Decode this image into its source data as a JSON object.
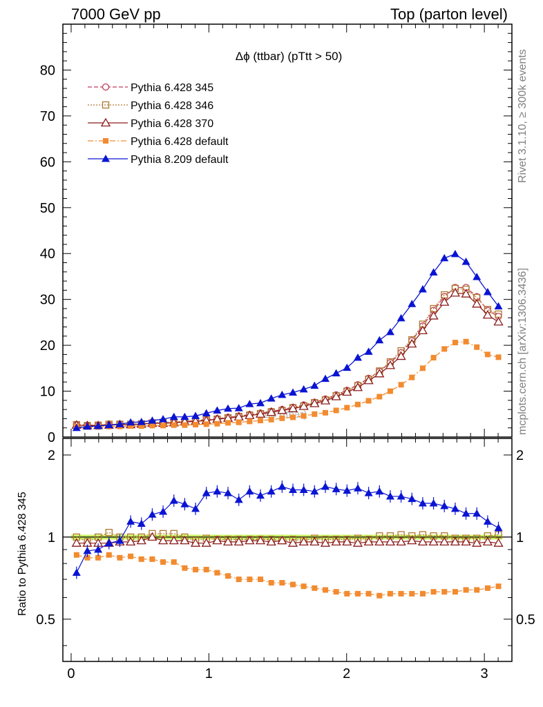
{
  "header": {
    "left": "7000 GeV pp",
    "right": "Top (parton level)"
  },
  "side_text": {
    "top": "Rivet 3.1.10, ≥ 300k events",
    "bottom": "mcplots.cern.ch [arXiv:1306.3436]"
  },
  "chart_data": [
    {
      "type": "line",
      "title": "Δϕ (ttbar) (pTtt > 50)",
      "watermark": "Δϕ (ttbar)",
      "xlim": [
        -0.06,
        3.2
      ],
      "ylim": [
        0,
        90
      ],
      "y_ticks": [
        0,
        10,
        20,
        30,
        40,
        50,
        60,
        70,
        80
      ],
      "x": [
        0.0393,
        0.1178,
        0.1963,
        0.2749,
        0.3534,
        0.432,
        0.5105,
        0.589,
        0.6676,
        0.7461,
        0.8247,
        0.9032,
        0.9817,
        1.0603,
        1.1388,
        1.2174,
        1.2959,
        1.3744,
        1.453,
        1.5315,
        1.6101,
        1.6886,
        1.7671,
        1.8457,
        1.9242,
        2.0028,
        2.0813,
        2.1598,
        2.2384,
        2.3169,
        2.3955,
        2.474,
        2.5525,
        2.6311,
        2.7096,
        2.7882,
        2.8667,
        2.9452,
        3.0238,
        3.1023
      ],
      "series": [
        {
          "name": "Pythia 6.428 345",
          "color": "#c0395a",
          "marker": "open-circle",
          "line": "dashed",
          "values": [
            2.7,
            2.6,
            2.6,
            2.7,
            2.8,
            2.8,
            2.9,
            3.0,
            3.1,
            3.2,
            3.4,
            3.6,
            3.8,
            4.0,
            4.3,
            4.6,
            4.9,
            5.2,
            5.6,
            6.0,
            6.5,
            7.0,
            7.6,
            8.3,
            9.2,
            10.2,
            11.4,
            12.8,
            14.3,
            16.2,
            18.4,
            21.0,
            24.2,
            27.6,
            30.6,
            32.6,
            32.6,
            30.6,
            27.6,
            26.3
          ]
        },
        {
          "name": "Pythia 6.428 346",
          "color": "#b07830",
          "marker": "open-square",
          "line": "dotted",
          "values": [
            2.7,
            2.5,
            2.6,
            2.8,
            2.8,
            2.8,
            2.9,
            3.1,
            3.2,
            3.3,
            3.4,
            3.5,
            3.7,
            3.9,
            4.2,
            4.5,
            4.8,
            5.1,
            5.5,
            5.8,
            6.4,
            6.8,
            7.5,
            8.1,
            9.0,
            10.0,
            11.2,
            12.6,
            14.4,
            16.4,
            18.8,
            21.2,
            24.6,
            28.0,
            31.0,
            32.4,
            32.2,
            30.4,
            27.8,
            26.8
          ]
        },
        {
          "name": "Pythia 6.428 370",
          "color": "#8b1a1a",
          "marker": "open-triangle",
          "line": "solid",
          "values": [
            2.6,
            2.5,
            2.5,
            2.6,
            2.7,
            2.7,
            2.8,
            3.0,
            3.0,
            3.1,
            3.3,
            3.4,
            3.6,
            3.9,
            4.1,
            4.4,
            4.7,
            5.0,
            5.4,
            5.8,
            6.2,
            6.7,
            7.3,
            7.9,
            8.8,
            9.8,
            10.8,
            12.3,
            13.8,
            15.6,
            17.6,
            20.3,
            23.2,
            26.4,
            29.4,
            31.4,
            31.2,
            29.0,
            26.6,
            25.1
          ]
        },
        {
          "name": "Pythia 6.428 default",
          "color": "#f28b30",
          "marker": "filled-square",
          "line": "dashdot",
          "values": [
            2.3,
            2.2,
            2.2,
            2.3,
            2.3,
            2.4,
            2.4,
            2.5,
            2.5,
            2.6,
            2.6,
            2.7,
            2.8,
            2.9,
            3.1,
            3.2,
            3.4,
            3.6,
            3.8,
            4.1,
            4.3,
            4.6,
            5.0,
            5.3,
            5.8,
            6.4,
            7.1,
            7.9,
            8.8,
            10.0,
            11.4,
            13.0,
            15.0,
            17.3,
            19.2,
            20.6,
            20.8,
            19.6,
            18.0,
            17.4
          ]
        },
        {
          "name": "Pythia 8.209 default",
          "color": "#0a14d2",
          "marker": "filled-triangle",
          "line": "solid",
          "values": [
            2.0,
            2.3,
            2.4,
            2.6,
            2.8,
            3.2,
            3.3,
            3.6,
            3.9,
            4.4,
            4.4,
            4.6,
            5.2,
            5.8,
            6.2,
            6.3,
            7.2,
            7.4,
            8.4,
            9.2,
            9.7,
            10.4,
            11.2,
            12.7,
            13.9,
            15.1,
            17.3,
            18.6,
            21.1,
            22.9,
            25.9,
            29.0,
            32.2,
            35.9,
            39.0,
            39.9,
            38.2,
            34.9,
            31.6,
            28.5
          ]
        }
      ]
    },
    {
      "type": "line",
      "ylabel": "Ratio to Pythia 6.428 345",
      "xlim": [
        -0.06,
        3.2
      ],
      "ylim": [
        0.35,
        2.3
      ],
      "y_ticks": [
        0.5,
        1,
        2
      ],
      "x_ticks": [
        0,
        1,
        2,
        3
      ],
      "reference_band": {
        "value": 1.0,
        "low": 0.98,
        "high": 1.02,
        "color": "#c8f064"
      },
      "series": [
        {
          "name": "Pythia 6.428 346",
          "values": [
            1.0,
            0.96,
            1.0,
            1.04,
            1.0,
            1.0,
            1.0,
            1.03,
            1.03,
            1.03,
            1.0,
            0.97,
            0.99,
            0.98,
            0.98,
            0.98,
            0.98,
            0.98,
            0.98,
            0.97,
            0.98,
            0.97,
            0.99,
            0.98,
            0.98,
            0.98,
            0.99,
            0.98,
            1.01,
            1.01,
            1.02,
            1.01,
            1.02,
            1.01,
            1.01,
            0.99,
            0.99,
            0.99,
            1.01,
            1.02
          ]
        },
        {
          "name": "Pythia 6.428 370",
          "values": [
            0.95,
            0.95,
            0.95,
            0.95,
            0.96,
            0.96,
            0.97,
            1.0,
            0.97,
            0.97,
            0.97,
            0.95,
            0.95,
            0.97,
            0.96,
            0.96,
            0.97,
            0.97,
            0.96,
            0.97,
            0.95,
            0.96,
            0.96,
            0.95,
            0.96,
            0.96,
            0.95,
            0.96,
            0.96,
            0.96,
            0.96,
            0.97,
            0.96,
            0.96,
            0.96,
            0.96,
            0.96,
            0.95,
            0.96,
            0.95
          ]
        },
        {
          "name": "Pythia 6.428 default",
          "values": [
            0.86,
            0.84,
            0.84,
            0.86,
            0.84,
            0.85,
            0.83,
            0.83,
            0.81,
            0.81,
            0.77,
            0.76,
            0.76,
            0.74,
            0.72,
            0.7,
            0.7,
            0.7,
            0.68,
            0.68,
            0.67,
            0.66,
            0.65,
            0.64,
            0.63,
            0.62,
            0.62,
            0.62,
            0.61,
            0.62,
            0.62,
            0.62,
            0.62,
            0.63,
            0.63,
            0.63,
            0.64,
            0.64,
            0.65,
            0.66
          ]
        },
        {
          "name": "Pythia 8.209 default",
          "values": [
            0.74,
            0.89,
            0.9,
            0.95,
            0.97,
            1.14,
            1.12,
            1.21,
            1.24,
            1.36,
            1.32,
            1.27,
            1.45,
            1.47,
            1.45,
            1.37,
            1.47,
            1.42,
            1.47,
            1.53,
            1.49,
            1.49,
            1.47,
            1.53,
            1.5,
            1.48,
            1.51,
            1.45,
            1.47,
            1.41,
            1.41,
            1.38,
            1.33,
            1.33,
            1.3,
            1.27,
            1.22,
            1.22,
            1.14,
            1.08
          ]
        }
      ]
    }
  ]
}
